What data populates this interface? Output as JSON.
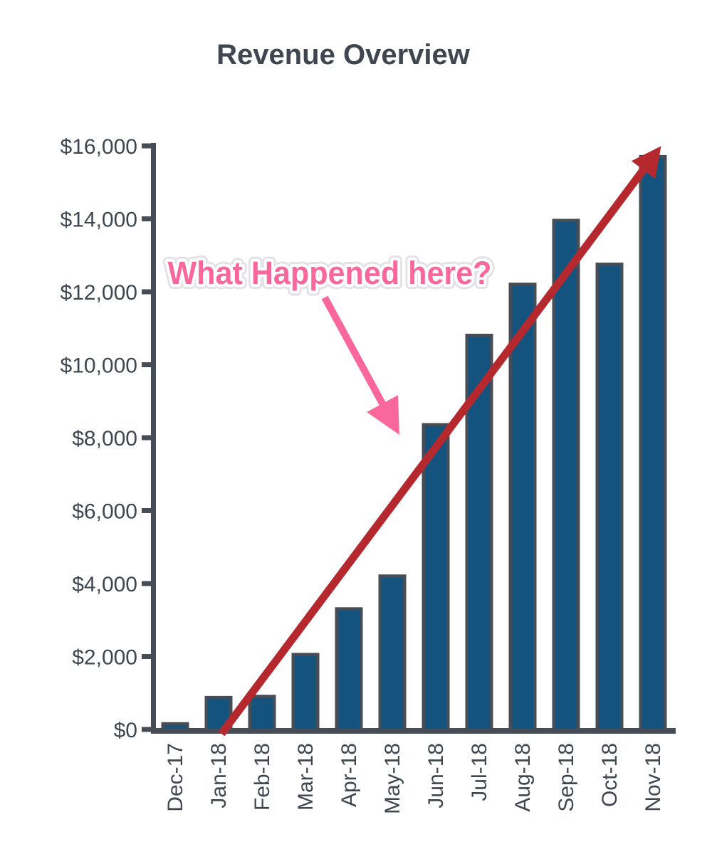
{
  "title": "Revenue Overview",
  "colors": {
    "background": "#ffffff",
    "text_dark": "#3f4650",
    "axis": "#474d57",
    "bar_fill": "#15537f",
    "bar_border": "#474d57",
    "trend_arrow_red": "#b5292e",
    "annotation_pink": "#f9679b"
  },
  "chart_data": {
    "type": "bar",
    "title": "Revenue Overview",
    "categories": [
      "Dec-17",
      "Jan-18",
      "Feb-18",
      "Mar-18",
      "Apr-18",
      "May-18",
      "Jun-18",
      "Jul-18",
      "Aug-18",
      "Sep-18",
      "Oct-18",
      "Nov-18"
    ],
    "values": [
      200,
      920,
      950,
      2100,
      3350,
      4250,
      8400,
      10850,
      12250,
      14000,
      12800,
      15750
    ],
    "xlabel": "",
    "ylabel": "",
    "ylim": [
      0,
      16000
    ],
    "ytick_values": [
      0,
      2000,
      4000,
      6000,
      8000,
      10000,
      12000,
      14000,
      16000
    ],
    "ytick_labels": [
      "$0",
      "$2,000",
      "$4,000",
      "$6,000",
      "$8,000",
      "$10,000",
      "$12,000",
      "$14,000",
      "$16,000"
    ],
    "xtick_rotation": -90,
    "grid": false,
    "legend": false,
    "annotations": {
      "callout": {
        "text": "What Happened here?",
        "points_to": "Jun-18"
      },
      "trendline": {
        "description": "rising trend arrow from Jan-18 at $0 to Nov-18 peak"
      }
    }
  }
}
